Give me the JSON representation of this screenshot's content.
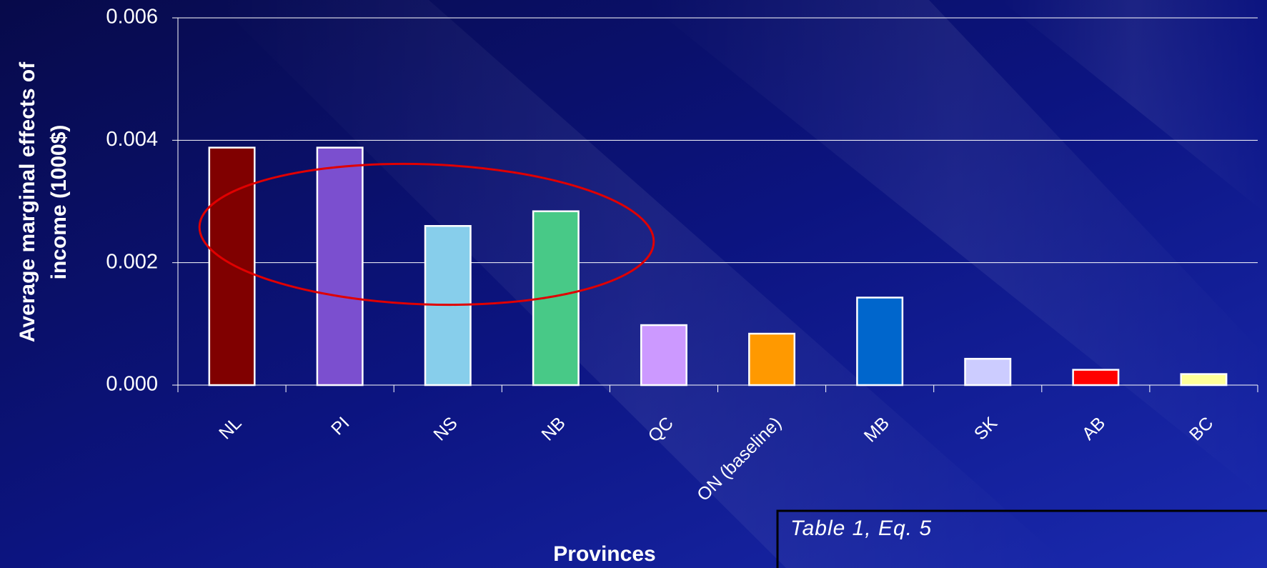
{
  "chart_data": {
    "type": "bar",
    "y_label": [
      "Average marginal effects of",
      "income (1000$)"
    ],
    "x_label": "Provinces",
    "annotation": "Table 1, Eq. 5",
    "categories": [
      "NL",
      "PI",
      "NS",
      "NB",
      "QC",
      "ON (baseline)",
      "MB",
      "SK",
      "AB",
      "BC"
    ],
    "values": [
      0.00388,
      0.00388,
      0.0026,
      0.00284,
      0.00098,
      0.00084,
      0.00143,
      0.00043,
      0.00025,
      0.00018
    ],
    "colors": [
      "#800000",
      "#7b4fcf",
      "#87ceeb",
      "#48c987",
      "#cc99ff",
      "#ff9900",
      "#0066cc",
      "#ccccff",
      "#ff0000",
      "#ffff99"
    ],
    "ylim": [
      0,
      0.006
    ],
    "yticks": [
      {
        "value": 0,
        "label": "0.000"
      },
      0.002,
      0.004,
      0.006
    ],
    "grid": true
  }
}
